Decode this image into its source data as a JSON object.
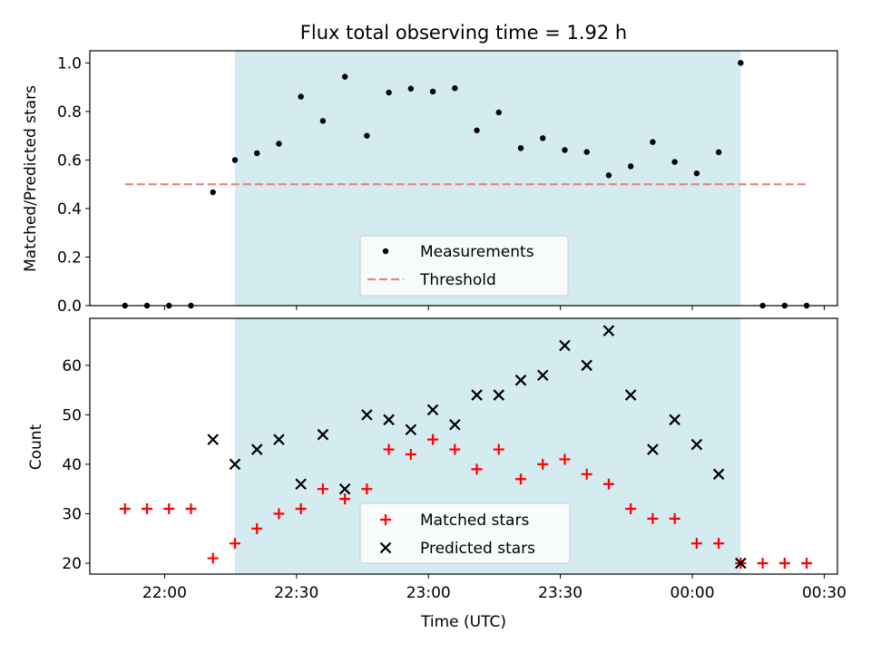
{
  "chart_data": [
    {
      "type": "scatter",
      "title": "Flux total observing time = 1.92 h",
      "ylabel": "Matched/Predicted stars",
      "xlabel": "",
      "ylim": [
        0,
        1.05
      ],
      "yticks": [
        0.0,
        0.2,
        0.4,
        0.6,
        0.8,
        1.0
      ],
      "ytick_labels": [
        "0.0",
        "0.2",
        "0.4",
        "0.6",
        "0.8",
        "1.0"
      ],
      "grid": false,
      "shaded_interval": {
        "start": "22:16",
        "end": "00:11",
        "color": "#d4ebf0"
      },
      "legend": {
        "placement": "lower-center",
        "entries": [
          "Measurements",
          "Threshold"
        ]
      },
      "threshold": {
        "name": "Threshold",
        "value": 0.5,
        "x_start": "21:51",
        "x_end": "00:26",
        "color": "#f08080"
      },
      "series": [
        {
          "name": "Measurements",
          "color": "#000000",
          "x": [
            "21:51",
            "21:56",
            "22:01",
            "22:06",
            "22:11",
            "22:16",
            "22:21",
            "22:26",
            "22:31",
            "22:36",
            "22:41",
            "22:46",
            "22:51",
            "22:56",
            "23:01",
            "23:06",
            "23:11",
            "23:16",
            "23:21",
            "23:26",
            "23:31",
            "23:36",
            "23:41",
            "23:46",
            "23:51",
            "23:56",
            "00:01",
            "00:06",
            "00:11",
            "00:16",
            "00:21",
            "00:26"
          ],
          "y": [
            0.0,
            0.0,
            0.0,
            0.0,
            0.467,
            0.6,
            0.628,
            0.667,
            0.861,
            0.761,
            0.943,
            0.7,
            0.878,
            0.894,
            0.882,
            0.896,
            0.722,
            0.796,
            0.649,
            0.69,
            0.641,
            0.633,
            0.537,
            0.574,
            0.674,
            0.592,
            0.545,
            0.632,
            1.0,
            0.0,
            0.0,
            0.0
          ]
        }
      ]
    },
    {
      "type": "scatter",
      "title": "",
      "ylabel": "Count",
      "xlabel": "Time (UTC)",
      "ylim": [
        17.8,
        69.5
      ],
      "yticks": [
        20,
        30,
        40,
        50,
        60
      ],
      "ytick_labels": [
        "20",
        "30",
        "40",
        "50",
        "60"
      ],
      "xtick_labels": [
        "22:00",
        "22:30",
        "23:00",
        "23:30",
        "00:00",
        "00:30"
      ],
      "grid": false,
      "shaded_interval": {
        "start": "22:16",
        "end": "00:11",
        "color": "#d4ebf0"
      },
      "legend": {
        "placement": "lower-center",
        "entries": [
          "Matched stars",
          "Predicted stars"
        ]
      },
      "x": [
        "21:51",
        "21:56",
        "22:01",
        "22:06",
        "22:11",
        "22:16",
        "22:21",
        "22:26",
        "22:31",
        "22:36",
        "22:41",
        "22:46",
        "22:51",
        "22:56",
        "23:01",
        "23:06",
        "23:11",
        "23:16",
        "23:21",
        "23:26",
        "23:31",
        "23:36",
        "23:41",
        "23:46",
        "23:51",
        "23:56",
        "00:01",
        "00:06",
        "00:11",
        "00:16",
        "00:21",
        "00:26"
      ],
      "series": [
        {
          "name": "Matched stars",
          "marker": "plus",
          "color": "#ff0000",
          "values": [
            31,
            31,
            31,
            31,
            21,
            24,
            27,
            30,
            31,
            35,
            33,
            35,
            43,
            42,
            45,
            43,
            39,
            43,
            37,
            40,
            41,
            38,
            36,
            31,
            29,
            29,
            24,
            24,
            20,
            20,
            20,
            20
          ]
        },
        {
          "name": "Predicted stars",
          "marker": "x",
          "color": "#000000",
          "values": [
            null,
            null,
            null,
            null,
            45,
            40,
            43,
            45,
            36,
            46,
            35,
            50,
            49,
            47,
            51,
            48,
            54,
            54,
            57,
            58,
            64,
            60,
            67,
            54,
            43,
            49,
            44,
            38,
            20,
            null,
            null,
            null
          ]
        }
      ]
    }
  ]
}
